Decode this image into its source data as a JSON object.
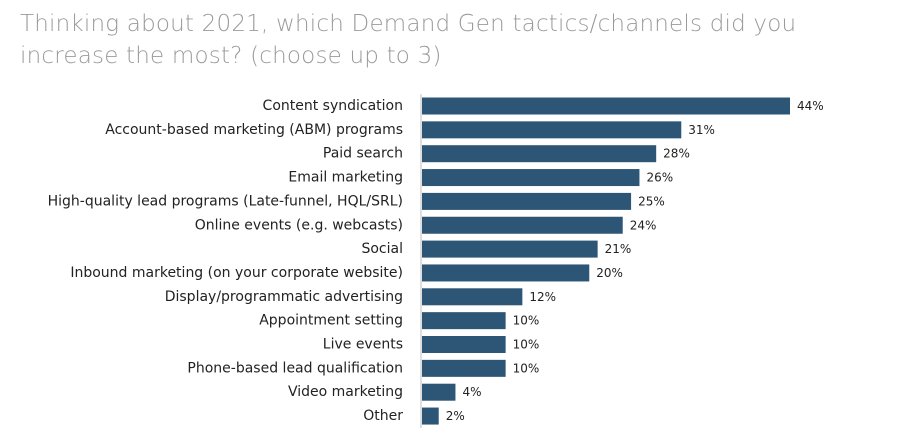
{
  "title": "Thinking about 2021, which Demand Gen tactics/channels did you increase the most? (choose up to 3)",
  "chart_data": {
    "type": "bar",
    "orientation": "horizontal",
    "title": "Thinking about 2021, which Demand Gen tactics/channels did you increase the most? (choose up to 3)",
    "categories": [
      "Content syndication",
      "Account-based marketing (ABM) programs",
      "Paid search",
      "Email marketing",
      "High-quality lead programs (Late-funnel, HQL/SRL)",
      "Online events (e.g. webcasts)",
      "Social",
      "Inbound marketing (on your corporate website)",
      "Display/programmatic advertising",
      "Appointment setting",
      "Live events",
      "Phone-based lead qualification",
      "Video marketing",
      "Other"
    ],
    "values": [
      44,
      31,
      28,
      26,
      25,
      24,
      21,
      20,
      12,
      10,
      10,
      10,
      4,
      2
    ],
    "value_labels": [
      "44%",
      "31%",
      "28%",
      "26%",
      "25%",
      "24%",
      "21%",
      "20%",
      "12%",
      "10%",
      "10%",
      "10%",
      "4%",
      "2%"
    ],
    "xlabel": "",
    "ylabel": "",
    "xlim": [
      0,
      44
    ],
    "grid": false,
    "legend": "none",
    "bar_color": "#2d5676",
    "axis_color": "#bfbfbf"
  }
}
